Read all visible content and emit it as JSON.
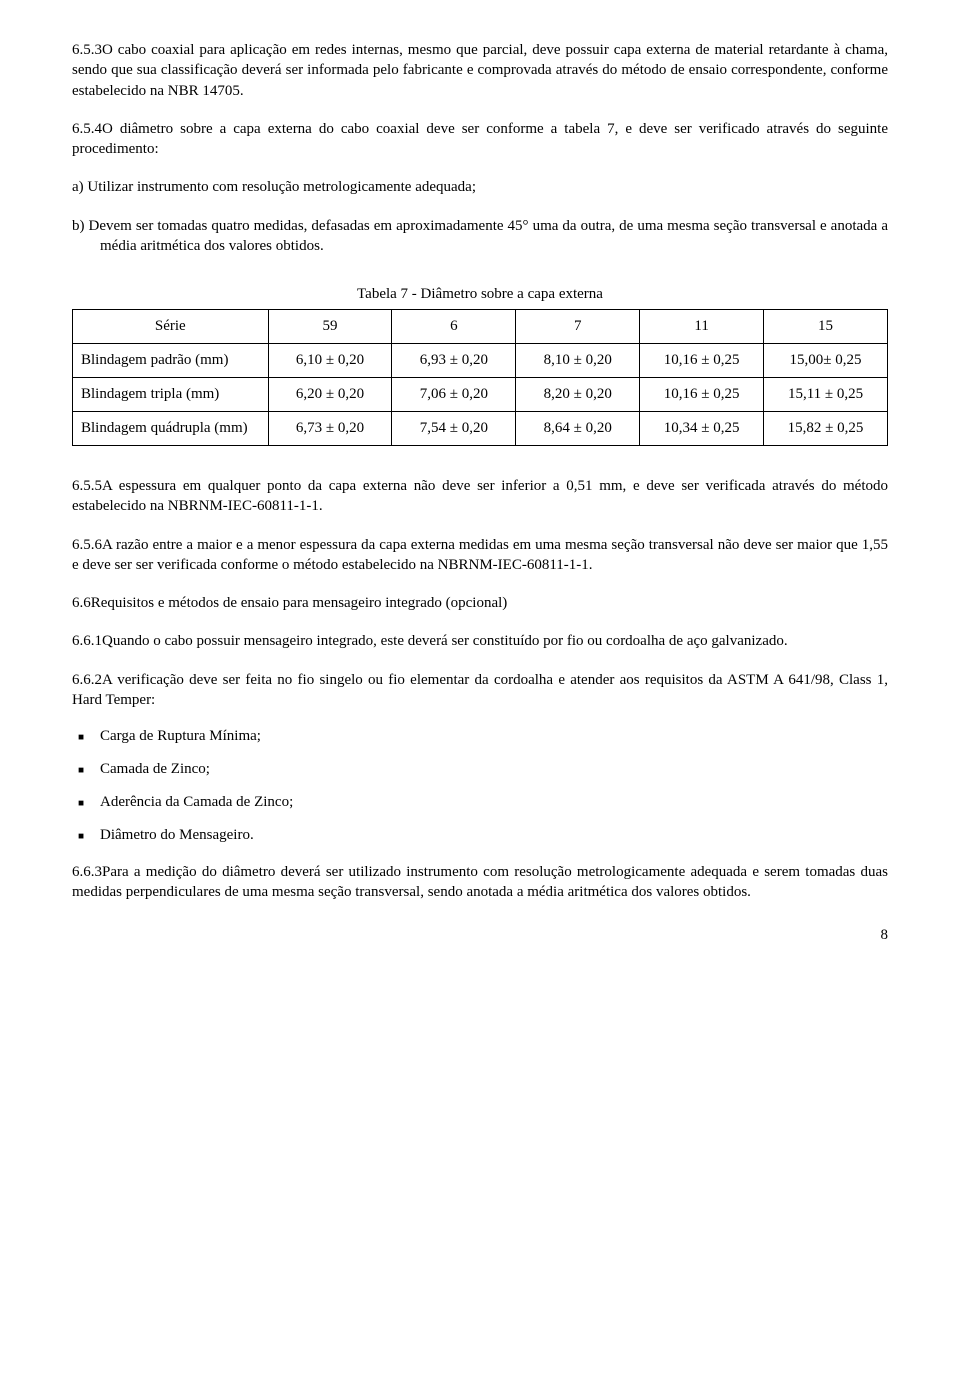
{
  "p653": "6.5.3O cabo coaxial para aplicação em redes internas, mesmo que parcial, deve possuir capa externa de material retardante à chama, sendo que sua classificação deverá ser informada pelo fabricante e comprovada através do método de ensaio correspondente, conforme estabelecido na NBR 14705.",
  "p654": "6.5.4O diâmetro sobre a capa externa do cabo coaxial  deve ser conforme a tabela 7, e deve ser verificado através do seguinte procedimento:",
  "list_a": "a)   Utilizar instrumento com resolução metrologicamente adequada;",
  "list_b": "b)  Devem ser tomadas quatro medidas, defasadas em aproximadamente 45° uma da outra, de uma mesma seção transversal e anotada a média aritmética dos valores obtidos.",
  "table": {
    "caption": "Tabela 7 - Diâmetro sobre a capa externa",
    "header": [
      "Série",
      "59",
      "6",
      "7",
      "11",
      "15"
    ],
    "rows": [
      {
        "label": "Blindagem padrão (mm)",
        "cells": [
          "6,10 ± 0,20",
          "6,93 ± 0,20",
          "8,10 ± 0,20",
          "10,16 ± 0,25",
          "15,00± 0,25"
        ]
      },
      {
        "label": "Blindagem tripla (mm)",
        "cells": [
          "6,20 ± 0,20",
          "7,06 ± 0,20",
          "8,20 ± 0,20",
          "10,16 ± 0,25",
          "15,11 ± 0,25"
        ]
      },
      {
        "label": "Blindagem quádrupla (mm)",
        "cells": [
          "6,73 ± 0,20",
          "7,54 ± 0,20",
          "8,64 ± 0,20",
          "10,34 ± 0,25",
          "15,82 ± 0,25"
        ]
      }
    ],
    "col_widths": [
      "24%",
      "15.2%",
      "15.2%",
      "15.2%",
      "15.2%",
      "15.2%"
    ],
    "border_color": "#000000"
  },
  "p655": "6.5.5A espessura em qualquer ponto da capa externa não deve ser inferior a 0,51 mm, e deve ser verificada através do método estabelecido na NBRNM-IEC-60811-1-1.",
  "p656": "6.5.6A razão entre a maior e a menor espessura da capa externa medidas em uma mesma seção transversal não deve ser maior que 1,55 e deve ser ser verificada conforme o método estabelecido na NBRNM-IEC-60811-1-1.",
  "p66": "6.6Requisitos e métodos de ensaio para mensageiro integrado (opcional)",
  "p661": "6.6.1Quando o cabo possuir mensageiro integrado, este deverá ser constituído por fio ou cordoalha de aço galvanizado.",
  "p662": "6.6.2A verificação deve ser feita no fio singelo ou fio elementar da cordoalha e atender aos requisitos da ASTM A 641/98, Class 1, Hard Temper:",
  "bullets": [
    "Carga de Ruptura Mínima;",
    "Camada de Zinco;",
    "Aderência da Camada de Zinco;",
    "Diâmetro do Mensageiro."
  ],
  "p663": "6.6.3Para a medição do diâmetro deverá ser utilizado instrumento com resolução metrologicamente adequada e serem tomadas duas medidas perpendiculares de uma mesma seção transversal, sendo anotada a média aritmética dos valores obtidos.",
  "pagenum": "8"
}
